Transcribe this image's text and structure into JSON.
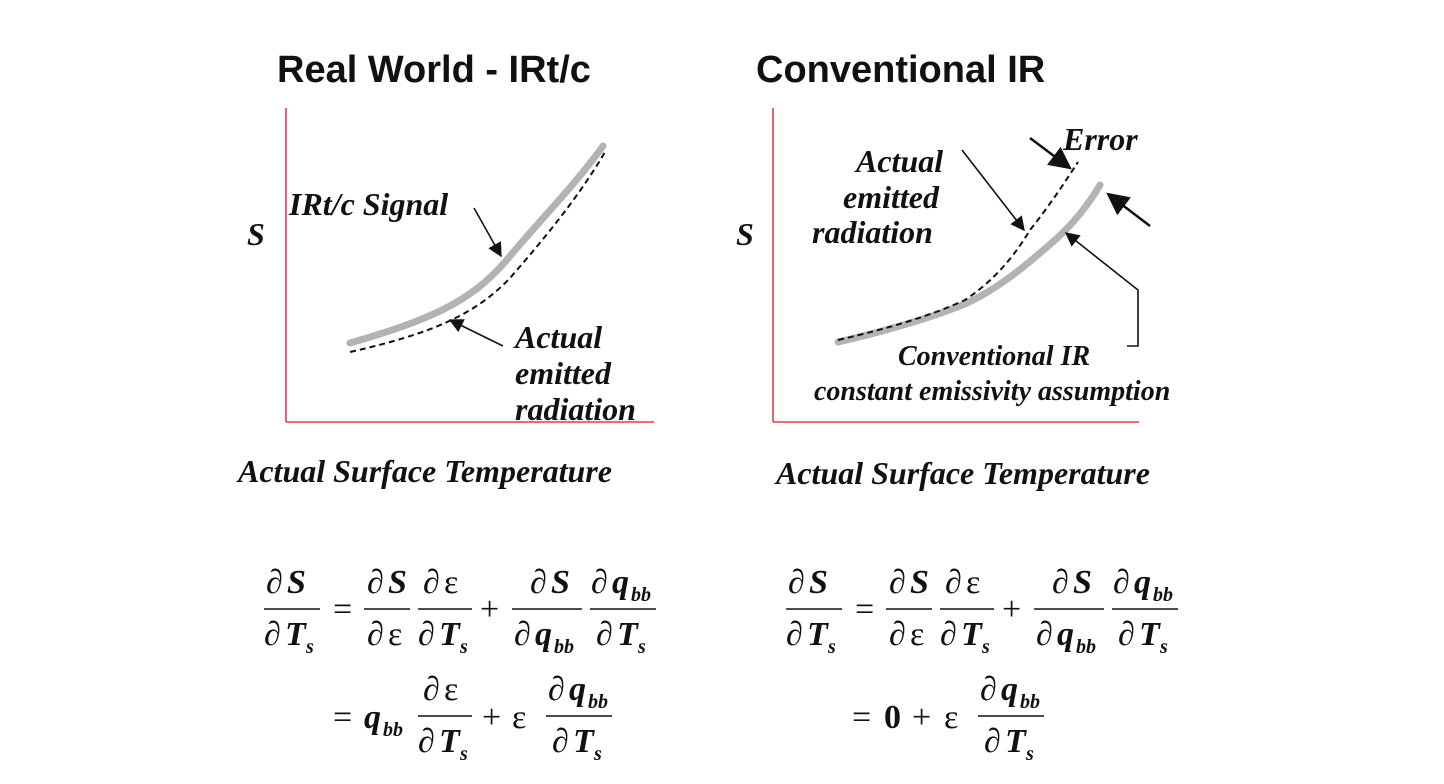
{
  "left_panel": {
    "title": "Real World - IRt/c",
    "y_label": "S",
    "x_label": "Actual Surface Temperature",
    "signal_label": "IRt/c Signal",
    "actual_label": [
      "Actual",
      "emitted",
      "radiation"
    ]
  },
  "right_panel": {
    "title": "Conventional IR",
    "y_label": "S",
    "x_label": "Actual Surface Temperature",
    "error_label": "Error",
    "actual_label": [
      "Actual",
      "emitted",
      "radiation"
    ],
    "conventional_label": [
      "Conventional IR",
      "constant emissivity assumption"
    ]
  },
  "equations": {
    "partial": "∂",
    "S": "S",
    "T": "T",
    "s": "s",
    "eps": "ε",
    "q": "q",
    "bb": "bb",
    "equals": "=",
    "plus": "+",
    "zero": "0"
  },
  "colors": {
    "axis": "#e8384f",
    "signal": "#b3b3b3",
    "ink": "#111111"
  }
}
